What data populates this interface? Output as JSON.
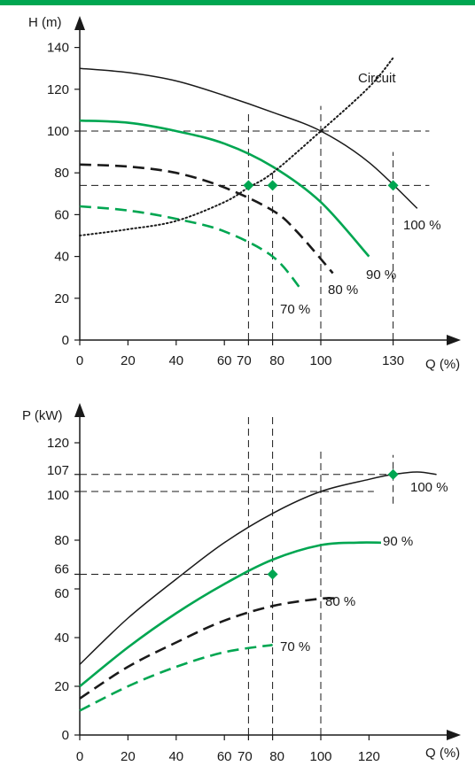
{
  "colors": {
    "accent_bar": "#00A651",
    "green": "#00A651",
    "black": "#1a1a1a",
    "marker": "#00A651"
  },
  "chart_data": [
    {
      "type": "line",
      "ylabel": "H (m)",
      "xlabel": "Q (%)",
      "xlim": [
        0,
        155
      ],
      "ylim": [
        0,
        148
      ],
      "x_ticks": [
        0,
        20,
        40,
        60,
        70,
        80,
        100,
        130
      ],
      "x_tick_labels": [
        "0",
        "20",
        "40",
        "60",
        "70",
        "80",
        "100",
        "130"
      ],
      "y_ticks": [
        0,
        20,
        40,
        60,
        80,
        100,
        120,
        140
      ],
      "y_tick_labels": [
        "0",
        "20",
        "40",
        "60",
        "80",
        "100",
        "120",
        "140"
      ],
      "series": [
        {
          "name": "100 %",
          "color": "black",
          "dash": "solid",
          "x": [
            0,
            20,
            40,
            60,
            80,
            100,
            120,
            140
          ],
          "y": [
            130,
            128,
            124,
            117,
            109,
            100,
            85,
            63
          ]
        },
        {
          "name": "90 %",
          "color": "green",
          "dash": "solid",
          "x": [
            0,
            20,
            40,
            60,
            80,
            100,
            120
          ],
          "y": [
            105,
            104,
            100,
            94,
            83,
            66,
            40
          ]
        },
        {
          "name": "80 %",
          "color": "black",
          "dash": "dashed",
          "x": [
            0,
            20,
            40,
            60,
            80,
            90,
            105
          ],
          "y": [
            84,
            83,
            80,
            73,
            62,
            52,
            32
          ]
        },
        {
          "name": "70 %",
          "color": "green",
          "dash": "dashed",
          "x": [
            0,
            20,
            40,
            60,
            80,
            92
          ],
          "y": [
            64,
            62,
            58,
            52,
            40,
            24
          ]
        },
        {
          "name": "Circuit",
          "color": "black",
          "dash": "dotted",
          "x": [
            0,
            20,
            40,
            60,
            70,
            80,
            100,
            120,
            130
          ],
          "y": [
            50,
            53,
            57,
            66,
            73,
            80,
            100,
            121,
            135
          ]
        }
      ],
      "markers": [
        {
          "x": 70,
          "y": 74
        },
        {
          "x": 80,
          "y": 74
        },
        {
          "x": 130,
          "y": 74
        }
      ],
      "guides": {
        "horizontal": [
          {
            "y": 100,
            "x0": 0,
            "x1": 145
          },
          {
            "y": 74,
            "x0": 0,
            "x1": 145
          }
        ],
        "vertical": [
          {
            "x": 70,
            "y0": 0,
            "y1": 110
          },
          {
            "x": 80,
            "y0": 0,
            "y1": 80
          },
          {
            "x": 100,
            "y0": 0,
            "y1": 112
          },
          {
            "x": 130,
            "y0": 0,
            "y1": 90
          }
        ]
      }
    },
    {
      "type": "line",
      "ylabel": "P (kW)",
      "xlabel": "Q (%)",
      "xlim": [
        0,
        155
      ],
      "ylim": [
        0,
        127
      ],
      "x_ticks": [
        0,
        20,
        40,
        60,
        70,
        80,
        100,
        120
      ],
      "x_tick_labels": [
        "0",
        "20",
        "40",
        "60",
        "70",
        "80",
        "100",
        "120"
      ],
      "y_ticks": [
        0,
        20,
        40,
        60,
        66,
        80,
        100,
        107,
        120
      ],
      "y_tick_labels": [
        "0",
        "20",
        "40",
        "60",
        "66",
        "80",
        "100",
        "107",
        "120"
      ],
      "series": [
        {
          "name": "100 %",
          "color": "black",
          "dash": "solid",
          "x": [
            0,
            20,
            40,
            60,
            80,
            100,
            120,
            130,
            140,
            148
          ],
          "y": [
            29,
            48,
            64,
            79,
            91,
            100,
            105,
            107,
            108,
            107
          ]
        },
        {
          "name": "90 %",
          "color": "green",
          "dash": "solid",
          "x": [
            0,
            20,
            40,
            60,
            80,
            100,
            115,
            125
          ],
          "y": [
            20,
            36,
            50,
            62,
            72,
            78,
            79,
            79
          ]
        },
        {
          "name": "80 %",
          "color": "black",
          "dash": "dashed",
          "x": [
            0,
            20,
            40,
            60,
            80,
            100,
            107
          ],
          "y": [
            15,
            28,
            38,
            47,
            53,
            56,
            56
          ]
        },
        {
          "name": "70 %",
          "color": "green",
          "dash": "dashed",
          "x": [
            0,
            20,
            40,
            60,
            80
          ],
          "y": [
            10,
            20,
            28,
            34,
            37
          ]
        }
      ],
      "markers": [
        {
          "x": 80,
          "y": 66
        },
        {
          "x": 130,
          "y": 107
        }
      ],
      "guides": {
        "horizontal": [
          {
            "y": 107,
            "x0": 0,
            "x1": 130
          },
          {
            "y": 100,
            "x0": 0,
            "x1": 122
          },
          {
            "y": 66,
            "x0": 0,
            "x1": 80
          }
        ],
        "vertical": [
          {
            "x": 70,
            "y0": 0,
            "y1": 132
          },
          {
            "x": 80,
            "y0": 0,
            "y1": 132
          },
          {
            "x": 100,
            "y0": 0,
            "y1": 118
          },
          {
            "x": 130,
            "y0": 95,
            "y1": 115
          }
        ]
      }
    }
  ]
}
